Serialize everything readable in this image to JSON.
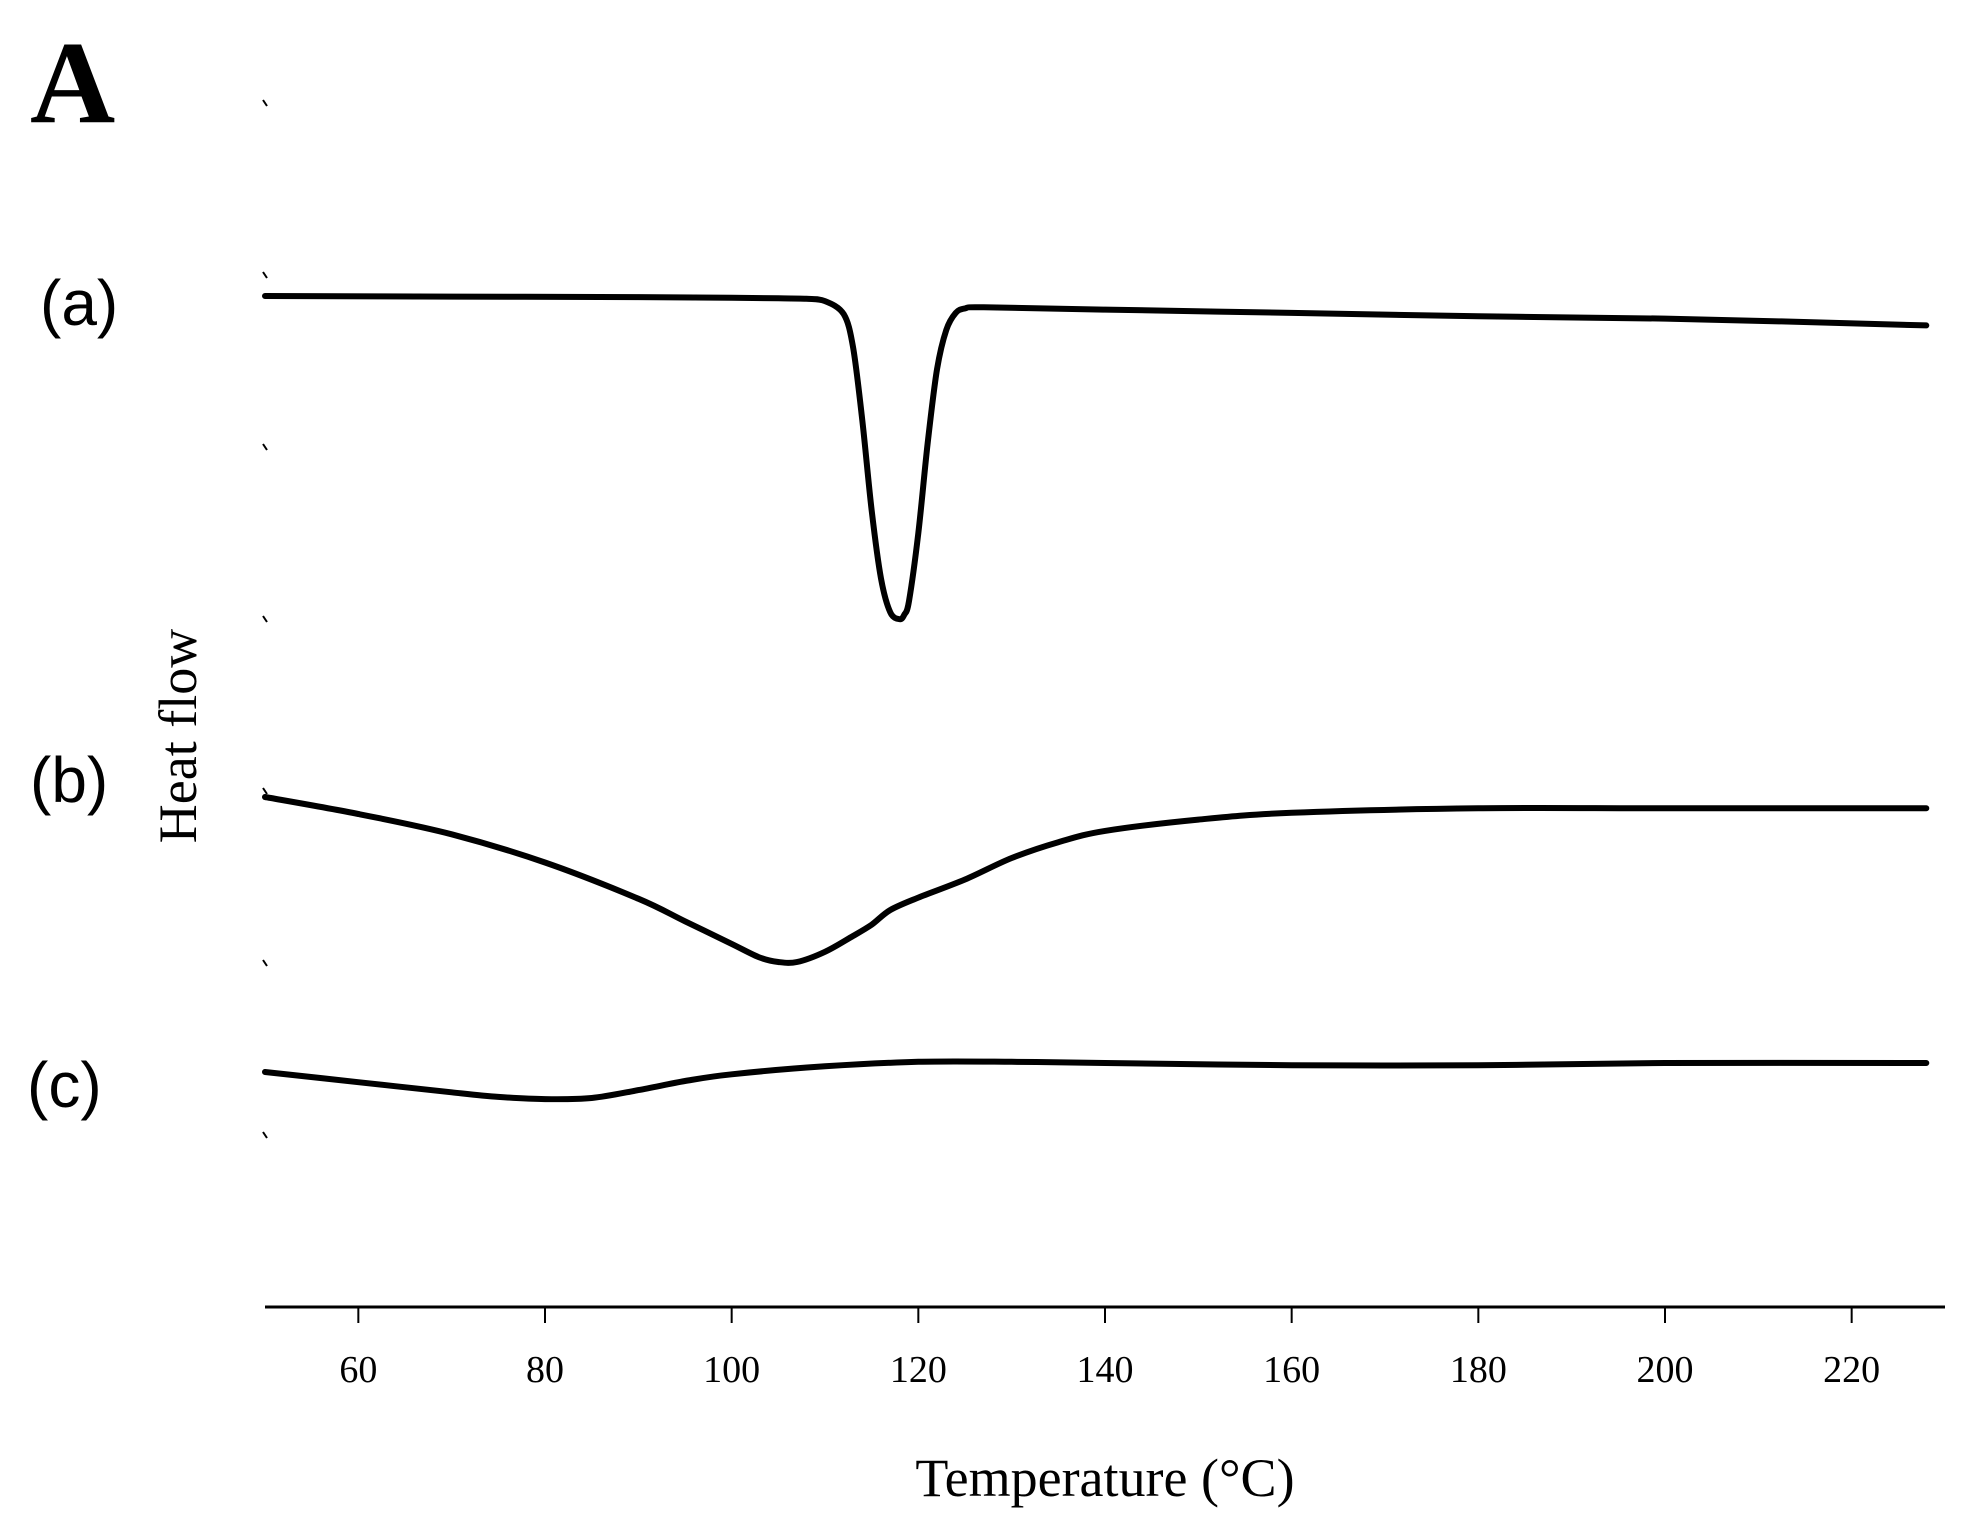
{
  "figure": {
    "panel_label": "A"
  },
  "chart_data": {
    "type": "line",
    "xlabel": "Temperature (°C)",
    "ylabel": "Heat flow",
    "xlim": [
      50,
      230
    ],
    "x_ticks": [
      60,
      80,
      100,
      120,
      140,
      160,
      180,
      200,
      220
    ],
    "y_ticks_shown": false,
    "grid": false,
    "series": [
      {
        "name": "(a)",
        "points": [
          [
            50,
            0
          ],
          [
            70,
            -0.05
          ],
          [
            90,
            -0.1
          ],
          [
            100,
            -0.15
          ],
          [
            105,
            -0.2
          ],
          [
            108,
            -0.25
          ],
          [
            110,
            -0.45
          ],
          [
            112,
            -1.6
          ],
          [
            113,
            -4.5
          ],
          [
            114,
            -11
          ],
          [
            115,
            -19
          ],
          [
            116,
            -25
          ],
          [
            117,
            -28
          ],
          [
            118,
            -28.6
          ],
          [
            118.5,
            -28.2
          ],
          [
            119,
            -27
          ],
          [
            120,
            -21
          ],
          [
            121,
            -13
          ],
          [
            122,
            -6.5
          ],
          [
            123,
            -3
          ],
          [
            124,
            -1.5
          ],
          [
            125,
            -1.1
          ],
          [
            127,
            -1.0
          ],
          [
            140,
            -1.2
          ],
          [
            160,
            -1.5
          ],
          [
            180,
            -1.8
          ],
          [
            200,
            -2.0
          ],
          [
            228,
            -2.6
          ]
        ]
      },
      {
        "name": "(b)",
        "points": [
          [
            50,
            0
          ],
          [
            60,
            -1.5
          ],
          [
            70,
            -3.3
          ],
          [
            80,
            -5.8
          ],
          [
            90,
            -9
          ],
          [
            95,
            -11
          ],
          [
            100,
            -13
          ],
          [
            103,
            -14.2
          ],
          [
            105,
            -14.6
          ],
          [
            107,
            -14.6
          ],
          [
            110,
            -13.7
          ],
          [
            113,
            -12.3
          ],
          [
            115,
            -11.3
          ],
          [
            117,
            -10
          ],
          [
            120,
            -8.9
          ],
          [
            125,
            -7.3
          ],
          [
            130,
            -5.4
          ],
          [
            135,
            -4.0
          ],
          [
            140,
            -3.0
          ],
          [
            150,
            -2.0
          ],
          [
            160,
            -1.4
          ],
          [
            180,
            -1.0
          ],
          [
            200,
            -1.0
          ],
          [
            228,
            -1.0
          ]
        ]
      },
      {
        "name": "(c)",
        "points": [
          [
            50,
            0
          ],
          [
            60,
            -0.9
          ],
          [
            70,
            -1.8
          ],
          [
            75,
            -2.2
          ],
          [
            80,
            -2.4
          ],
          [
            85,
            -2.3
          ],
          [
            90,
            -1.6
          ],
          [
            95,
            -0.8
          ],
          [
            100,
            -0.2
          ],
          [
            110,
            0.5
          ],
          [
            120,
            0.9
          ],
          [
            130,
            0.9
          ],
          [
            140,
            0.8
          ],
          [
            160,
            0.6
          ],
          [
            180,
            0.6
          ],
          [
            200,
            0.8
          ],
          [
            228,
            0.8
          ]
        ]
      }
    ]
  }
}
